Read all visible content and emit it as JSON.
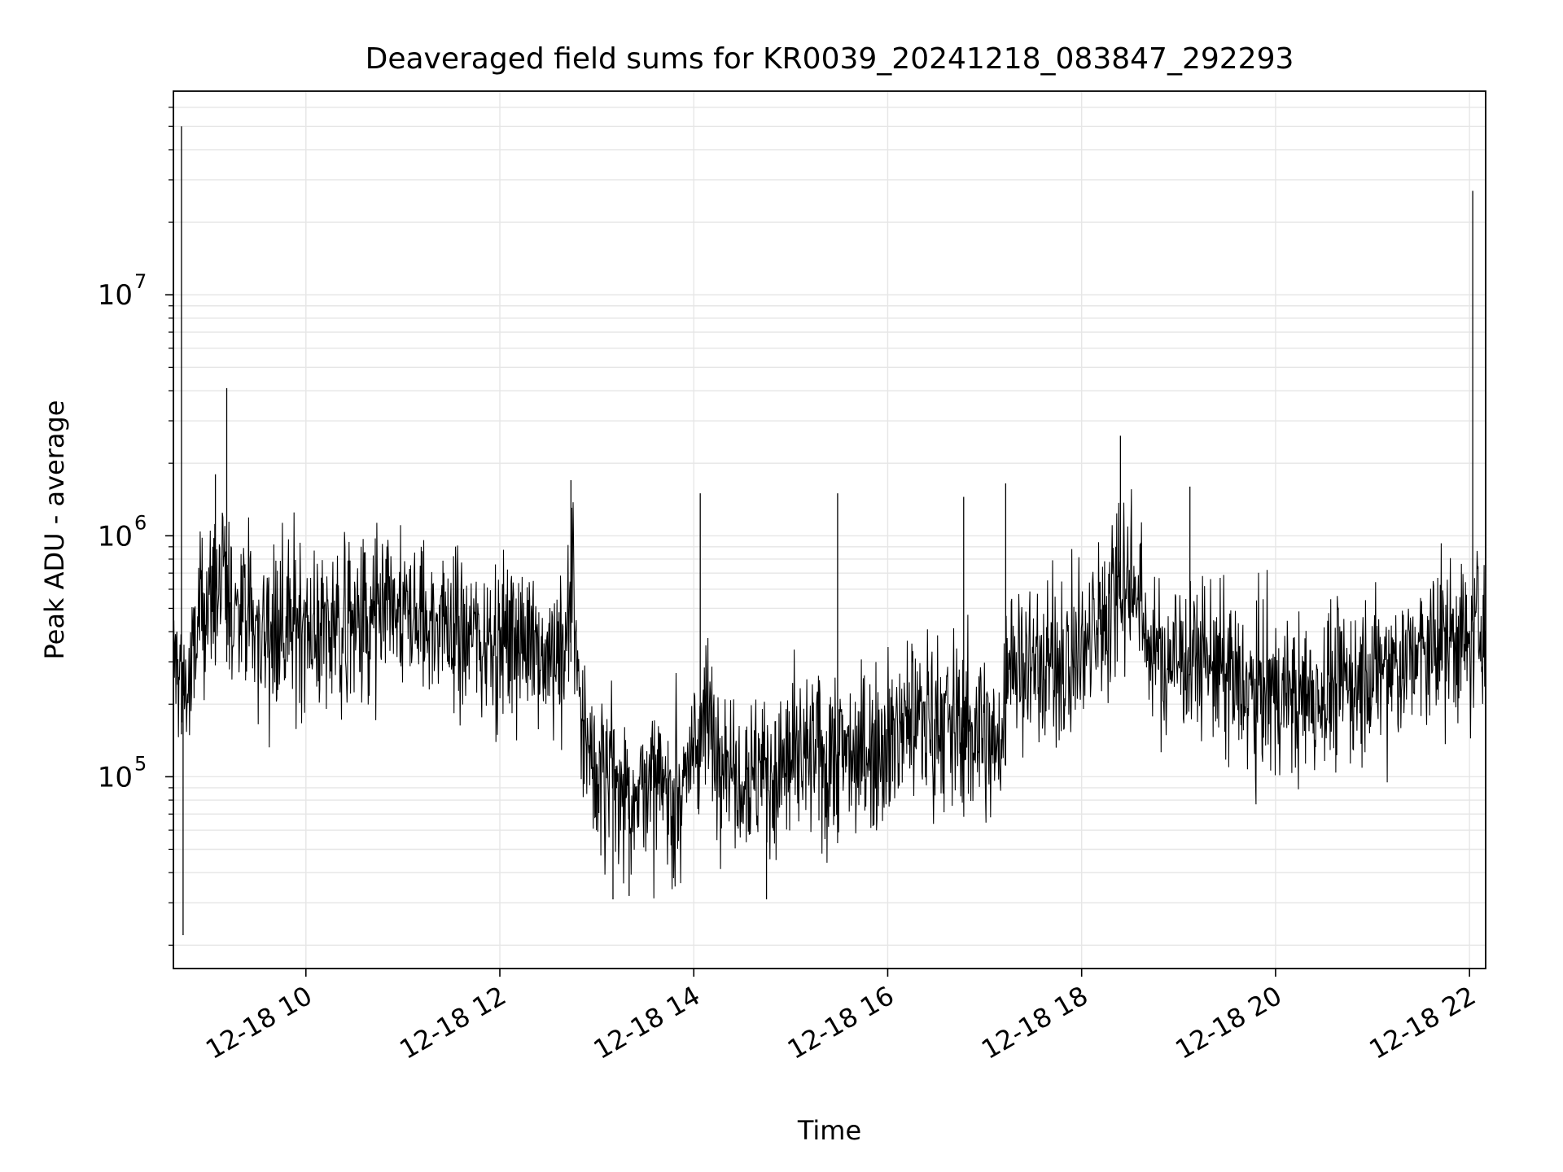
{
  "chart_data": {
    "type": "line",
    "title": "Deaveraged field sums for KR0039_20241218_083847_292293",
    "xlabel": "Time",
    "ylabel": "Peak ADU - average",
    "xlim": [
      "2024-12-18 08:38",
      "2024-12-18 22:10"
    ],
    "ylim": [
      16000,
      70000000
    ],
    "yscale": "log",
    "grid": true,
    "line_color": "#000000",
    "grid_color": "#e6e6e6",
    "x_ticks": [
      {
        "t": "2024-12-18 10:00",
        "label": "12-18 10"
      },
      {
        "t": "2024-12-18 12:00",
        "label": "12-18 12"
      },
      {
        "t": "2024-12-18 14:00",
        "label": "12-18 14"
      },
      {
        "t": "2024-12-18 16:00",
        "label": "12-18 16"
      },
      {
        "t": "2024-12-18 18:00",
        "label": "12-18 18"
      },
      {
        "t": "2024-12-18 20:00",
        "label": "12-18 20"
      },
      {
        "t": "2024-12-18 22:00",
        "label": "12-18 22"
      }
    ],
    "y_ticks": [
      {
        "value": 100000,
        "base": "10",
        "exp": "5"
      },
      {
        "value": 1000000,
        "base": "10",
        "exp": "6"
      },
      {
        "value": 10000000,
        "base": "10",
        "exp": "7"
      }
    ],
    "series": [
      {
        "x": [
          "2024-12-18 08:38",
          "2024-12-18 08:45",
          "2024-12-18 08:48",
          "2024-12-18 08:55",
          "2024-12-18 09:05",
          "2024-12-18 09:15",
          "2024-12-18 09:25",
          "2024-12-18 09:35",
          "2024-12-18 09:45",
          "2024-12-18 10:00",
          "2024-12-18 10:15",
          "2024-12-18 10:30",
          "2024-12-18 10:45",
          "2024-12-18 11:00",
          "2024-12-18 11:15",
          "2024-12-18 11:30",
          "2024-12-18 11:45",
          "2024-12-18 12:00",
          "2024-12-18 12:15",
          "2024-12-18 12:30",
          "2024-12-18 12:40",
          "2024-12-18 12:45",
          "2024-12-18 12:50",
          "2024-12-18 13:00",
          "2024-12-18 13:15",
          "2024-12-18 13:30",
          "2024-12-18 13:45",
          "2024-12-18 13:55",
          "2024-12-18 14:05",
          "2024-12-18 14:15",
          "2024-12-18 14:30",
          "2024-12-18 14:45",
          "2024-12-18 15:00",
          "2024-12-18 15:15",
          "2024-12-18 15:30",
          "2024-12-18 15:45",
          "2024-12-18 16:00",
          "2024-12-18 16:15",
          "2024-12-18 16:30",
          "2024-12-18 16:45",
          "2024-12-18 17:00",
          "2024-12-18 17:10",
          "2024-12-18 17:15",
          "2024-12-18 17:30",
          "2024-12-18 17:45",
          "2024-12-18 18:00",
          "2024-12-18 18:15",
          "2024-12-18 18:25",
          "2024-12-18 18:35",
          "2024-12-18 18:45",
          "2024-12-18 19:00",
          "2024-12-18 19:15",
          "2024-12-18 19:30",
          "2024-12-18 19:45",
          "2024-12-18 20:00",
          "2024-12-18 20:15",
          "2024-12-18 20:30",
          "2024-12-18 20:45",
          "2024-12-18 21:00",
          "2024-12-18 21:15",
          "2024-12-18 21:30",
          "2024-12-18 21:45",
          "2024-12-18 22:00",
          "2024-12-18 22:10"
        ],
        "y": [
          300000,
          250000,
          220000,
          500000,
          580000,
          500000,
          450000,
          420000,
          430000,
          450000,
          400000,
          420000,
          430000,
          460000,
          440000,
          420000,
          390000,
          380000,
          370000,
          330000,
          350000,
          700000,
          150000,
          110000,
          95000,
          90000,
          85000,
          100000,
          170000,
          140000,
          110000,
          100000,
          115000,
          120000,
          125000,
          130000,
          150000,
          170000,
          180000,
          165000,
          150000,
          130000,
          320000,
          300000,
          290000,
          330000,
          450000,
          700000,
          560000,
          300000,
          320000,
          330000,
          250000,
          230000,
          220000,
          210000,
          230000,
          250000,
          260000,
          290000,
          320000,
          350000,
          380000,
          430000
        ]
      }
    ],
    "spikes": [
      {
        "t": "2024-12-18 08:43",
        "lo": 150000,
        "hi": 50000000
      },
      {
        "t": "2024-12-18 08:44",
        "lo": 22000,
        "hi": 300000
      },
      {
        "t": "2024-12-18 09:11",
        "lo": 300000,
        "hi": 4100000
      },
      {
        "t": "2024-12-18 09:04",
        "lo": 300000,
        "hi": 1800000
      },
      {
        "t": "2024-12-18 12:44",
        "lo": 300000,
        "hi": 1700000
      },
      {
        "t": "2024-12-18 14:04",
        "lo": 150000,
        "hi": 1500000
      },
      {
        "t": "2024-12-18 15:29",
        "lo": 120000,
        "hi": 1500000
      },
      {
        "t": "2024-12-18 16:47",
        "lo": 160000,
        "hi": 1450000
      },
      {
        "t": "2024-12-18 17:13",
        "lo": 200000,
        "hi": 1650000
      },
      {
        "t": "2024-12-18 18:24",
        "lo": 500000,
        "hi": 2600000
      },
      {
        "t": "2024-12-18 19:07",
        "lo": 300000,
        "hi": 1600000
      },
      {
        "t": "2024-12-18 22:02",
        "lo": 400000,
        "hi": 27000000
      },
      {
        "t": "2024-12-18 13:10",
        "lo": 31000,
        "hi": 120000
      },
      {
        "t": "2024-12-18 13:20",
        "lo": 32000,
        "hi": 110000
      },
      {
        "t": "2024-12-18 14:45",
        "lo": 31000,
        "hi": 120000
      }
    ]
  }
}
